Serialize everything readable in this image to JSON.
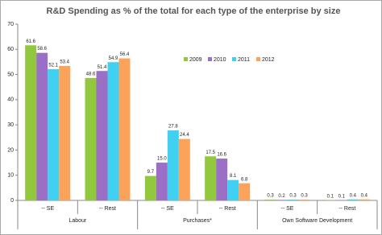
{
  "chart_data": {
    "type": "bar",
    "title": "R&D Spending as % of the total for each type of the enterprise by size",
    "categories": [
      "-- SE",
      "-- Rest",
      "-- SE",
      "-- Rest",
      "-- SE",
      "-- Rest"
    ],
    "groups": [
      "Labour",
      "Purchases*",
      "Own Software Development"
    ],
    "series": [
      {
        "name": "2009",
        "color": "#92c83e",
        "values": [
          61.6,
          48.6,
          9.7,
          17.5,
          0.3,
          0.1
        ],
        "value_labels": [
          "61.6",
          "48.6",
          "9.7",
          "17.5",
          "0.3",
          "0.1"
        ]
      },
      {
        "name": "2010",
        "color": "#9b6fc6",
        "values": [
          58.6,
          51.4,
          15.0,
          16.6,
          0.2,
          0.1
        ],
        "value_labels": [
          "58.6",
          "51.4",
          "15.0",
          "16.6",
          "0.2",
          "0.1"
        ]
      },
      {
        "name": "2011",
        "color": "#3fd0f2",
        "values": [
          52.1,
          54.9,
          27.8,
          8.1,
          0.3,
          0.4
        ],
        "value_labels": [
          "52.1",
          "54.9",
          "27.8",
          "8.1",
          "0.3",
          "0.4"
        ]
      },
      {
        "name": "2012",
        "color": "#fba35a",
        "values": [
          53.4,
          56.4,
          24.4,
          6.8,
          0.3,
          0.4
        ],
        "value_labels": [
          "53.4",
          "56.4",
          "24.4",
          "6.8",
          "0.3",
          "0.4"
        ]
      }
    ],
    "ylim": [
      0,
      70
    ],
    "yticks": [
      0,
      10,
      20,
      30,
      40,
      50,
      60,
      70
    ],
    "grid": false,
    "legend": "top-right"
  }
}
